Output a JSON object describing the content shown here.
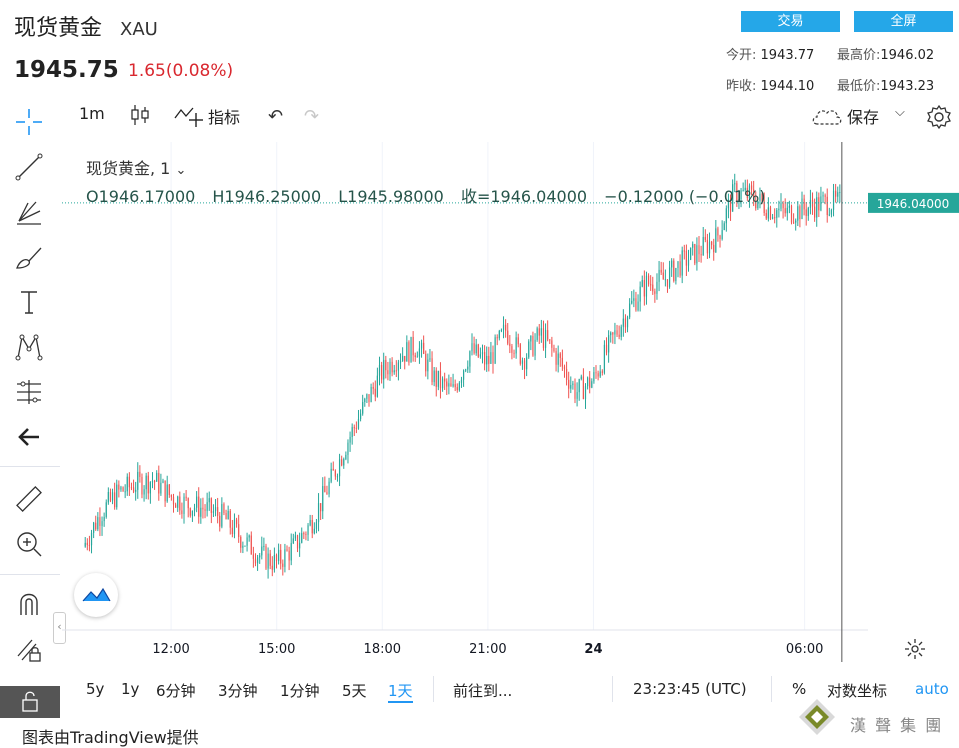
{
  "header": {
    "title": "现货黄金",
    "symbol": "XAU",
    "price": "1945.75",
    "change": "1.65(0.08%)",
    "trade_button": "交易",
    "fullscreen_button": "全屏",
    "stats": {
      "open_label": "今开:",
      "open": "1943.77",
      "high_label": "最高价:",
      "high": "1946.02",
      "prev_close_label": "昨收:",
      "prev_close": "1944.10",
      "low_label": "最低价:",
      "low": "1943.23"
    }
  },
  "toolbar": {
    "interval": "1m",
    "indicators": "指标",
    "save": "保存"
  },
  "legend": {
    "series": "现货黄金, 1",
    "open": "O1946.17000",
    "high": "H1946.25000",
    "low": "L1945.98000",
    "close": "收=1946.04000",
    "change": "−0.12000 (−0.01%)"
  },
  "bottom_bar": {
    "ranges": [
      "5y",
      "1y",
      "6分钟",
      "3分钟",
      "1分钟",
      "5天",
      "1天"
    ],
    "active_range": "1天",
    "goto": "前往到...",
    "time": "23:23:45 (UTC)",
    "percent": "%",
    "log": "对数坐标",
    "auto": "auto"
  },
  "credit": "图表由TradingView提供",
  "watermark": "漢 聲 集 團",
  "chart_data": {
    "type": "line",
    "price_label": "1946.04000",
    "x_tick_labels": [
      "12:00",
      "15:00",
      "18:00",
      "21:00",
      "24",
      "06:00"
    ],
    "x": [
      "09:30",
      "10:00",
      "10:30",
      "11:00",
      "11:30",
      "12:00",
      "12:30",
      "13:00",
      "13:30",
      "14:00",
      "14:30",
      "15:00",
      "15:30",
      "16:00",
      "16:30",
      "17:00",
      "17:30",
      "18:00",
      "18:30",
      "19:00",
      "19:30",
      "20:00",
      "20:30",
      "21:00",
      "21:30",
      "22:00",
      "22:30",
      "23:00",
      "23:30",
      "00:00",
      "00:30",
      "01:00",
      "01:30",
      "02:00",
      "02:30",
      "03:00",
      "03:30",
      "04:00",
      "04:30",
      "05:00",
      "05:30",
      "06:00",
      "06:30",
      "07:00"
    ],
    "values": [
      1937.8,
      1938.6,
      1939.1,
      1939.3,
      1939.4,
      1939.0,
      1938.8,
      1938.7,
      1938.5,
      1938.0,
      1937.6,
      1937.4,
      1937.8,
      1938.4,
      1939.3,
      1940.3,
      1941.2,
      1942.0,
      1942.4,
      1942.6,
      1941.8,
      1941.5,
      1942.5,
      1942.2,
      1943.0,
      1942.3,
      1942.9,
      1942.3,
      1941.5,
      1941.8,
      1942.7,
      1943.5,
      1944.1,
      1944.2,
      1944.6,
      1944.9,
      1945.2,
      1946.3,
      1946.2,
      1945.9,
      1945.8,
      1945.9,
      1946.04,
      1946.04
    ],
    "color": "#26a69a",
    "down_color": "#ef5350",
    "crosshair_x": "07:00"
  }
}
